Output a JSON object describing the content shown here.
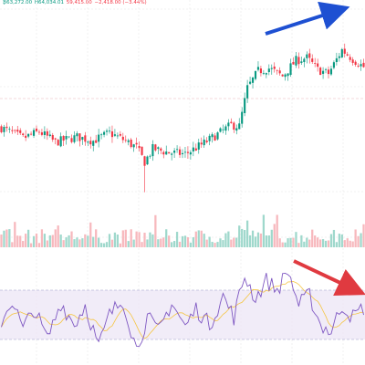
{
  "ohlc_line": {
    "open": "₿63,272.00",
    "high": "H64,034.01",
    "low": "59,415.00",
    "change": "−2,418.00 (−3.44%)"
  },
  "colors": {
    "up": "#089981",
    "down": "#f23645",
    "volume_up": "#9fd8cc",
    "volume_down": "#f7b8bd",
    "rsi_line": "#7e57c2",
    "rsi_ma": "#f5c542",
    "rsi_band": "#ede7f6",
    "arrow_top": "#1e50d2",
    "arrow_bottom": "#e03a40",
    "grid": "#e6e6e6",
    "price_line": "#e8b4b8"
  },
  "annotations": [
    {
      "name": "blue-arrow",
      "color": "#1e50d2",
      "direction": "up-right"
    },
    {
      "name": "red-arrow",
      "color": "#e03a40",
      "direction": "down-right"
    }
  ],
  "chart_data": {
    "type": "candlestick",
    "title": "",
    "xlabel": "",
    "ylabel": "",
    "grid": true,
    "price_keypoints": [
      [
        0,
        57200
      ],
      [
        8,
        56400
      ],
      [
        14,
        56900
      ],
      [
        20,
        56100
      ],
      [
        28,
        56500
      ],
      [
        34,
        56200
      ],
      [
        40,
        56800
      ],
      [
        45,
        56300
      ],
      [
        50,
        55700
      ],
      [
        53,
        54600
      ],
      [
        56,
        55600
      ],
      [
        62,
        55300
      ],
      [
        68,
        55200
      ],
      [
        74,
        55900
      ],
      [
        80,
        56700
      ],
      [
        85,
        57400
      ],
      [
        88,
        57300
      ],
      [
        91,
        60200
      ],
      [
        95,
        61500
      ],
      [
        99,
        61700
      ],
      [
        104,
        61100
      ],
      [
        109,
        62300
      ],
      [
        113,
        62500
      ],
      [
        117,
        61600
      ],
      [
        121,
        61300
      ],
      [
        126,
        63100
      ],
      [
        130,
        62400
      ],
      [
        134,
        61800
      ]
    ],
    "volume_spike_bars": [
      57,
      97,
      102
    ],
    "rsi": {
      "upper": 70,
      "lower": 30,
      "keypoints": [
        [
          0,
          45
        ],
        [
          4,
          62
        ],
        [
          8,
          38
        ],
        [
          12,
          55
        ],
        [
          17,
          30
        ],
        [
          22,
          60
        ],
        [
          27,
          42
        ],
        [
          31,
          58
        ],
        [
          36,
          24
        ],
        [
          40,
          50
        ],
        [
          45,
          62
        ],
        [
          50,
          22
        ],
        [
          54,
          48
        ],
        [
          58,
          36
        ],
        [
          63,
          60
        ],
        [
          68,
          40
        ],
        [
          72,
          55
        ],
        [
          77,
          42
        ],
        [
          82,
          65
        ],
        [
          86,
          48
        ],
        [
          90,
          82
        ],
        [
          94,
          63
        ],
        [
          98,
          78
        ],
        [
          102,
          70
        ],
        [
          106,
          86
        ],
        [
          110,
          58
        ],
        [
          114,
          66
        ],
        [
          118,
          42
        ],
        [
          122,
          36
        ],
        [
          126,
          58
        ],
        [
          130,
          48
        ],
        [
          134,
          56
        ]
      ]
    }
  }
}
